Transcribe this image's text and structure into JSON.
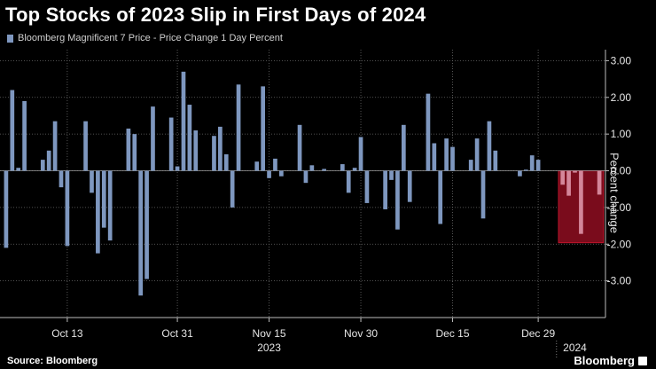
{
  "title": "Top Stocks of 2023 Slip in First Days of 2024",
  "legend": {
    "label": "Bloomberg Magnificent 7 Price - Price Change 1 Day Percent",
    "color": "#7e97bf"
  },
  "source": "Source: Bloomberg",
  "brand": "Bloomberg",
  "chart_data": {
    "type": "bar",
    "ylabel": "Percent change",
    "ylim": [
      -4.0,
      3.3
    ],
    "y_ticks": [
      3,
      2,
      1,
      0,
      -1,
      -2,
      -3
    ],
    "y_tick_labels": [
      "3.00",
      "2.00",
      "1.00",
      "0.00",
      "-1.00",
      "-2.00",
      "-3.00"
    ],
    "x_tick_labels": [
      "Oct 13",
      "Oct 31",
      "Nov 15",
      "Nov 30",
      "Dec 15",
      "Dec 29"
    ],
    "x_tick_dates": [
      "2023-10-13",
      "2023-10-31",
      "2023-11-15",
      "2023-11-30",
      "2023-12-15",
      "2023-12-29"
    ],
    "x_year_labels": [
      "2023",
      "2024"
    ],
    "grid": true,
    "bar_color": "#7e97bf",
    "highlight_color": "#d4869a",
    "highlight_box_color": "#7a0c1c",
    "dates": [
      "2023-10-03",
      "2023-10-04",
      "2023-10-05",
      "2023-10-06",
      "2023-10-09",
      "2023-10-10",
      "2023-10-11",
      "2023-10-12",
      "2023-10-13",
      "2023-10-16",
      "2023-10-17",
      "2023-10-18",
      "2023-10-19",
      "2023-10-20",
      "2023-10-23",
      "2023-10-24",
      "2023-10-25",
      "2023-10-26",
      "2023-10-27",
      "2023-10-30",
      "2023-10-31",
      "2023-11-01",
      "2023-11-02",
      "2023-11-03",
      "2023-11-06",
      "2023-11-07",
      "2023-11-08",
      "2023-11-09",
      "2023-11-10",
      "2023-11-13",
      "2023-11-14",
      "2023-11-15",
      "2023-11-16",
      "2023-11-17",
      "2023-11-20",
      "2023-11-21",
      "2023-11-22",
      "2023-11-24",
      "2023-11-27",
      "2023-11-28",
      "2023-11-29",
      "2023-11-30",
      "2023-12-01",
      "2023-12-04",
      "2023-12-05",
      "2023-12-06",
      "2023-12-07",
      "2023-12-08",
      "2023-12-11",
      "2023-12-12",
      "2023-12-13",
      "2023-12-14",
      "2023-12-15",
      "2023-12-18",
      "2023-12-19",
      "2023-12-20",
      "2023-12-21",
      "2023-12-22",
      "2023-12-26",
      "2023-12-27",
      "2023-12-28",
      "2023-12-29",
      "2024-01-02",
      "2024-01-03",
      "2024-01-04",
      "2024-01-05",
      "2024-01-08"
    ],
    "values": [
      -2.1,
      2.2,
      0.08,
      1.9,
      0.3,
      0.55,
      1.35,
      -0.45,
      -2.05,
      1.35,
      -0.6,
      -2.25,
      -1.55,
      -1.9,
      1.15,
      1.0,
      -3.4,
      -2.95,
      1.75,
      1.45,
      0.12,
      2.7,
      1.8,
      1.1,
      0.95,
      1.2,
      0.45,
      -1.0,
      2.35,
      0.25,
      2.3,
      -0.2,
      0.33,
      -0.15,
      1.25,
      -0.33,
      0.15,
      0.05,
      0.18,
      -0.6,
      0.08,
      0.92,
      -0.88,
      -1.05,
      -0.25,
      -1.6,
      1.25,
      -0.85,
      2.1,
      0.75,
      -1.45,
      0.88,
      0.65,
      0.3,
      0.88,
      -1.3,
      1.35,
      0.55,
      -0.15,
      0.03,
      0.42,
      0.3,
      -0.38,
      -0.68,
      -0.05,
      -1.72,
      -0.65
    ],
    "highlight_from": "2024-01-02"
  }
}
